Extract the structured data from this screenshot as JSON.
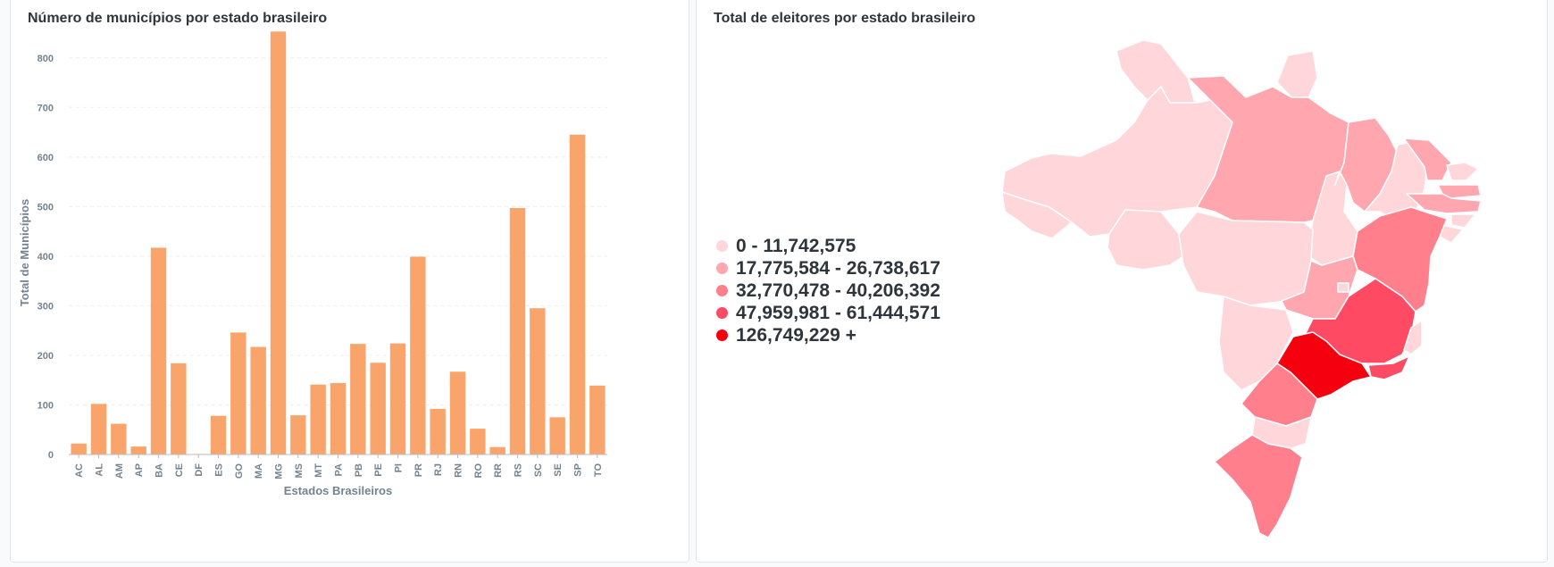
{
  "left_card": {
    "title": "Número de municípios por estado brasileiro"
  },
  "right_card": {
    "title": "Total de eleitores por estado brasileiro"
  },
  "chart_data": [
    {
      "type": "bar",
      "title": "Número de municípios por estado brasileiro",
      "xlabel": "Estados Brasileiros",
      "ylabel": "Total de Municípios",
      "ylim": [
        0,
        850
      ],
      "yticks": [
        0,
        100,
        200,
        300,
        400,
        500,
        600,
        700,
        800
      ],
      "grid": true,
      "bar_color": "#f9a46a",
      "categories": [
        "AC",
        "AL",
        "AM",
        "AP",
        "BA",
        "CE",
        "DF",
        "ES",
        "GO",
        "MA",
        "MG",
        "MS",
        "MT",
        "PA",
        "PB",
        "PE",
        "PI",
        "PR",
        "RJ",
        "RN",
        "RO",
        "RR",
        "RS",
        "SC",
        "SE",
        "SP",
        "TO"
      ],
      "values": [
        22,
        102,
        62,
        16,
        417,
        184,
        1,
        78,
        246,
        217,
        853,
        79,
        141,
        144,
        223,
        185,
        224,
        399,
        92,
        167,
        52,
        15,
        497,
        295,
        75,
        645,
        139
      ]
    },
    {
      "type": "map",
      "title": "Total de eleitores por estado brasileiro",
      "legend": [
        {
          "label": "0 - 11,742,575",
          "color": "#ffd6d9"
        },
        {
          "label": "17,775,584 - 26,738,617",
          "color": "#ffa6ae"
        },
        {
          "label": "32,770,478 - 40,206,392",
          "color": "#ff808c"
        },
        {
          "label": "47,959,981 - 61,444,571",
          "color": "#ff4a63"
        },
        {
          "label": "126,749,229 +",
          "color": "#f5000f"
        }
      ]
    }
  ]
}
